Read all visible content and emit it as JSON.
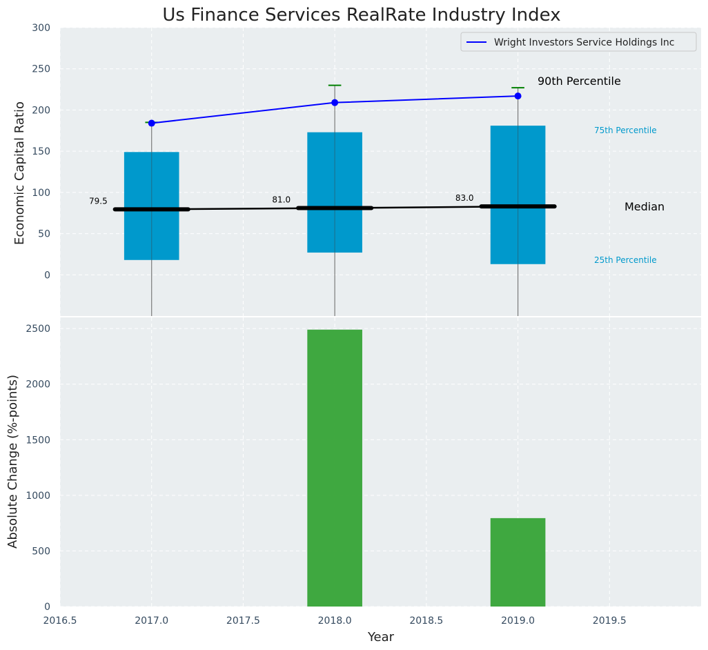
{
  "chart_data": [
    {
      "type": "box",
      "title": "Us Finance Services RealRate Industry Index",
      "ylabel": "Economic Capital Ratio",
      "xlabel": "",
      "xlim": [
        2016.5,
        2020.0
      ],
      "ylim": [
        -50,
        300
      ],
      "yticks": [
        0,
        50,
        100,
        150,
        200,
        250,
        300
      ],
      "grid": true,
      "categories": [
        "2017.0",
        "2018.0",
        "2019.0"
      ],
      "x": [
        2017,
        2018,
        2019
      ],
      "percentile_25": [
        18,
        27,
        13
      ],
      "percentile_75": [
        149,
        173,
        181
      ],
      "percentile_90": [
        185,
        230,
        227
      ],
      "median": [
        79.5,
        81.0,
        83.0
      ],
      "median_labels": [
        "79.5",
        "81.0",
        "83.0"
      ],
      "series": [
        {
          "name": "Wright Investors Service Holdings Inc",
          "values": [
            184,
            209,
            217
          ],
          "color": "#0000ff"
        }
      ],
      "legend": {
        "location": "top-right",
        "entries": [
          "Wright Investors Service Holdings Inc"
        ]
      },
      "annotations": {
        "p90": "90th Percentile",
        "p75": "75th Percentile",
        "median": "Median",
        "p25": "25th Percentile"
      },
      "colors": {
        "box": "#0099cc",
        "median": "#000000",
        "p90": "#008000",
        "company": "#0000ff"
      }
    },
    {
      "type": "bar",
      "ylabel": "Absolute Change (%-points)",
      "xlabel": "Year",
      "xlim": [
        2016.5,
        2020.0
      ],
      "xticks": [
        "2016.5",
        "2017.0",
        "2017.5",
        "2018.0",
        "2018.5",
        "2019.0",
        "2019.5"
      ],
      "ylim": [
        0,
        2600
      ],
      "yticks": [
        0,
        500,
        1000,
        1500,
        2000,
        2500
      ],
      "grid": true,
      "x": [
        2017,
        2018,
        2019
      ],
      "values": [
        0,
        2490,
        795
      ],
      "colors": {
        "bar": "#2ca02c"
      }
    }
  ]
}
